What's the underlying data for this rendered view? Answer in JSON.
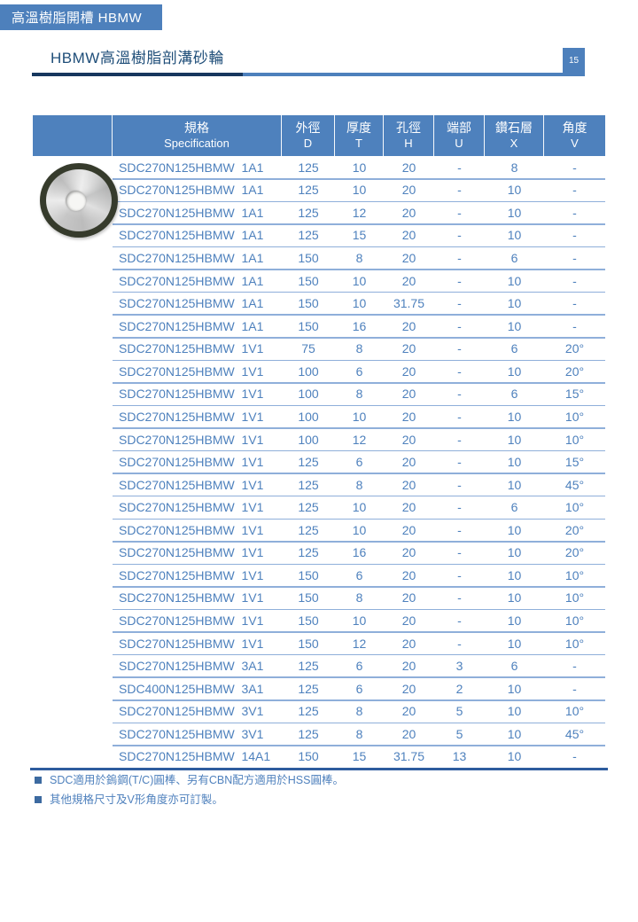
{
  "tab": {
    "label": "高溫樹脂開槽  HBMW"
  },
  "header": {
    "title": "HBMW高溫樹脂剖溝砂輪",
    "page_number": "15"
  },
  "product_image": {
    "name": "resin-bond-grinding-wheel-photo"
  },
  "table": {
    "columns": [
      {
        "zh": "規格",
        "code": "Specification"
      },
      {
        "zh": "外徑",
        "code": "D"
      },
      {
        "zh": "厚度",
        "code": "T"
      },
      {
        "zh": "孔徑",
        "code": "H"
      },
      {
        "zh": "端部",
        "code": "U"
      },
      {
        "zh": "鑽石層",
        "code": "X"
      },
      {
        "zh": "角度",
        "code": "V"
      }
    ],
    "rows": [
      [
        "SDC270N125HBMW  1A1",
        "125",
        "10",
        "20",
        "-",
        "8",
        "-"
      ],
      [
        "SDC270N125HBMW  1A1",
        "125",
        "10",
        "20",
        "-",
        "10",
        "-"
      ],
      [
        "SDC270N125HBMW  1A1",
        "125",
        "12",
        "20",
        "-",
        "10",
        "-"
      ],
      [
        "SDC270N125HBMW  1A1",
        "125",
        "15",
        "20",
        "-",
        "10",
        "-"
      ],
      [
        "SDC270N125HBMW  1A1",
        "150",
        "8",
        "20",
        "-",
        "6",
        "-"
      ],
      [
        "SDC270N125HBMW  1A1",
        "150",
        "10",
        "20",
        "-",
        "10",
        "-"
      ],
      [
        "SDC270N125HBMW  1A1",
        "150",
        "10",
        "31.75",
        "-",
        "10",
        "-"
      ],
      [
        "SDC270N125HBMW  1A1",
        "150",
        "16",
        "20",
        "-",
        "10",
        "-"
      ],
      [
        "SDC270N125HBMW  1V1",
        "75",
        "8",
        "20",
        "-",
        "6",
        "20°"
      ],
      [
        "SDC270N125HBMW  1V1",
        "100",
        "6",
        "20",
        "-",
        "10",
        "20°"
      ],
      [
        "SDC270N125HBMW  1V1",
        "100",
        "8",
        "20",
        "-",
        "6",
        "15°"
      ],
      [
        "SDC270N125HBMW  1V1",
        "100",
        "10",
        "20",
        "-",
        "10",
        "10°"
      ],
      [
        "SDC270N125HBMW  1V1",
        "100",
        "12",
        "20",
        "-",
        "10",
        "10°"
      ],
      [
        "SDC270N125HBMW  1V1",
        "125",
        "6",
        "20",
        "-",
        "10",
        "15°"
      ],
      [
        "SDC270N125HBMW  1V1",
        "125",
        "8",
        "20",
        "-",
        "10",
        "45°"
      ],
      [
        "SDC270N125HBMW  1V1",
        "125",
        "10",
        "20",
        "-",
        "6",
        "10°"
      ],
      [
        "SDC270N125HBMW  1V1",
        "125",
        "10",
        "20",
        "-",
        "10",
        "20°"
      ],
      [
        "SDC270N125HBMW  1V1",
        "125",
        "16",
        "20",
        "-",
        "10",
        "20°"
      ],
      [
        "SDC270N125HBMW  1V1",
        "150",
        "6",
        "20",
        "-",
        "10",
        "10°"
      ],
      [
        "SDC270N125HBMW  1V1",
        "150",
        "8",
        "20",
        "-",
        "10",
        "10°"
      ],
      [
        "SDC270N125HBMW  1V1",
        "150",
        "10",
        "20",
        "-",
        "10",
        "10°"
      ],
      [
        "SDC270N125HBMW  1V1",
        "150",
        "12",
        "20",
        "-",
        "10",
        "10°"
      ],
      [
        "SDC270N125HBMW  3A1",
        "125",
        "6",
        "20",
        "3",
        "6",
        "-"
      ],
      [
        "SDC400N125HBMW  3A1",
        "125",
        "6",
        "20",
        "2",
        "10",
        "-"
      ],
      [
        "SDC270N125HBMW  3V1",
        "125",
        "8",
        "20",
        "5",
        "10",
        "10°"
      ],
      [
        "SDC270N125HBMW  3V1",
        "125",
        "8",
        "20",
        "5",
        "10",
        "45°"
      ],
      [
        "SDC270N125HBMW  14A1",
        "150",
        "15",
        "31.75",
        "13",
        "10",
        "-"
      ]
    ]
  },
  "notes": [
    "SDC適用於鎢鋼(T/C)圓棒、另有CBN配方適用於HSS圓棒。",
    "其他規格尺寸及V形角度亦可訂製。"
  ],
  "colors": {
    "accent_blue": "#4e81bd",
    "dark_navy": "#17375e",
    "title_text": "#1f4e79",
    "row_line": "#8fafda",
    "bottom_rule": "#2e5c9e"
  }
}
